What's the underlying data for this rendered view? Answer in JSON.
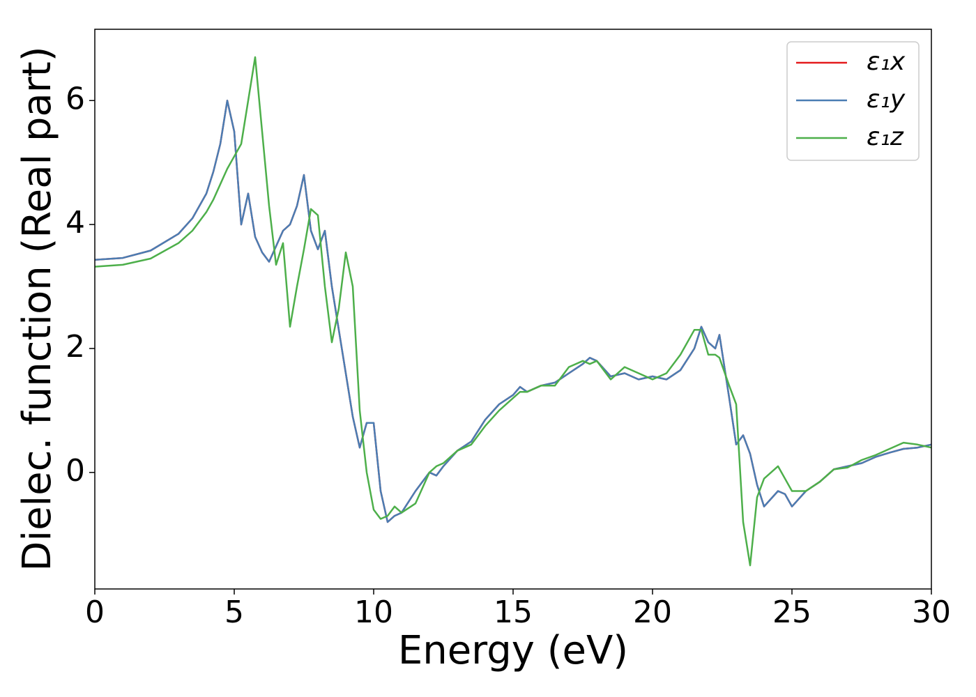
{
  "chart_data": {
    "type": "line",
    "xlabel": "Energy (eV)",
    "ylabel": "Dielec. function (Real part)",
    "x": [
      0,
      1,
      2,
      3,
      3.5,
      4,
      4.25,
      4.5,
      4.75,
      5,
      5.25,
      5.5,
      5.75,
      6,
      6.25,
      6.5,
      6.75,
      7,
      7.25,
      7.5,
      7.75,
      8,
      8.25,
      8.5,
      8.75,
      9,
      9.25,
      9.5,
      9.75,
      10,
      10.25,
      10.5,
      10.75,
      11,
      11.5,
      12,
      12.25,
      12.5,
      13,
      13.5,
      14,
      14.5,
      15,
      15.25,
      15.5,
      16,
      16.5,
      17,
      17.5,
      17.75,
      18,
      18.5,
      19,
      19.5,
      20,
      20.5,
      21,
      21.5,
      21.75,
      22,
      22.25,
      22.4,
      22.75,
      23,
      23.25,
      23.5,
      23.75,
      24,
      24.5,
      24.75,
      25,
      25.5,
      26,
      26.5,
      27,
      27.5,
      28,
      28.5,
      29,
      29.5,
      30
    ],
    "series": [
      {
        "name": "ε₁x",
        "color": "#e41a1c",
        "values": [
          3.43,
          3.46,
          3.58,
          3.85,
          4.1,
          4.5,
          4.85,
          5.3,
          6.0,
          5.5,
          4.0,
          4.5,
          3.8,
          3.55,
          3.4,
          3.65,
          3.9,
          4.0,
          4.3,
          4.8,
          3.9,
          3.6,
          3.9,
          3.0,
          2.3,
          1.6,
          0.9,
          0.4,
          0.8,
          0.8,
          -0.3,
          -0.8,
          -0.7,
          -0.65,
          -0.3,
          0.0,
          -0.05,
          0.1,
          0.35,
          0.5,
          0.85,
          1.1,
          1.25,
          1.38,
          1.3,
          1.4,
          1.45,
          1.6,
          1.75,
          1.85,
          1.8,
          1.55,
          1.6,
          1.5,
          1.55,
          1.5,
          1.65,
          2.0,
          2.35,
          2.1,
          2.0,
          2.22,
          1.2,
          0.45,
          0.6,
          0.3,
          -0.2,
          -0.55,
          -0.3,
          -0.35,
          -0.55,
          -0.3,
          -0.15,
          0.05,
          0.1,
          0.15,
          0.25,
          0.32,
          0.38,
          0.4,
          0.45
        ]
      },
      {
        "name": "ε₁y",
        "color": "#4a7db3",
        "values": [
          3.43,
          3.46,
          3.58,
          3.85,
          4.1,
          4.5,
          4.85,
          5.3,
          6.0,
          5.5,
          4.0,
          4.5,
          3.8,
          3.55,
          3.4,
          3.65,
          3.9,
          4.0,
          4.3,
          4.8,
          3.9,
          3.6,
          3.9,
          3.0,
          2.3,
          1.6,
          0.9,
          0.4,
          0.8,
          0.8,
          -0.3,
          -0.8,
          -0.7,
          -0.65,
          -0.3,
          0.0,
          -0.05,
          0.1,
          0.35,
          0.5,
          0.85,
          1.1,
          1.25,
          1.38,
          1.3,
          1.4,
          1.45,
          1.6,
          1.75,
          1.85,
          1.8,
          1.55,
          1.6,
          1.5,
          1.55,
          1.5,
          1.65,
          2.0,
          2.35,
          2.1,
          2.0,
          2.22,
          1.2,
          0.45,
          0.6,
          0.3,
          -0.2,
          -0.55,
          -0.3,
          -0.35,
          -0.55,
          -0.3,
          -0.15,
          0.05,
          0.1,
          0.15,
          0.25,
          0.32,
          0.38,
          0.4,
          0.45
        ]
      },
      {
        "name": "ε₁z",
        "color": "#4daf4a",
        "values": [
          3.32,
          3.35,
          3.45,
          3.7,
          3.9,
          4.2,
          4.4,
          4.65,
          4.9,
          5.1,
          5.3,
          6.0,
          6.7,
          5.5,
          4.3,
          3.35,
          3.7,
          2.35,
          3.0,
          3.6,
          4.25,
          4.15,
          3.0,
          2.1,
          2.65,
          3.55,
          3.0,
          1.0,
          0.0,
          -0.6,
          -0.75,
          -0.7,
          -0.55,
          -0.65,
          -0.5,
          0.0,
          0.1,
          0.15,
          0.35,
          0.45,
          0.75,
          1.0,
          1.2,
          1.3,
          1.3,
          1.4,
          1.4,
          1.7,
          1.8,
          1.75,
          1.8,
          1.5,
          1.7,
          1.6,
          1.5,
          1.6,
          1.9,
          2.3,
          2.3,
          1.9,
          1.9,
          1.85,
          1.4,
          1.1,
          -0.8,
          -1.5,
          -0.4,
          -0.1,
          0.1,
          -0.1,
          -0.3,
          -0.3,
          -0.15,
          0.05,
          0.08,
          0.2,
          0.28,
          0.38,
          0.48,
          0.45,
          0.4
        ]
      }
    ],
    "xlim": [
      0,
      30
    ],
    "xticks": [
      0,
      5,
      10,
      15,
      20,
      25,
      30
    ],
    "ylim": [
      -1.88,
      7.15
    ],
    "yticks": [
      0,
      2,
      4,
      6
    ],
    "legend": "upper right"
  }
}
